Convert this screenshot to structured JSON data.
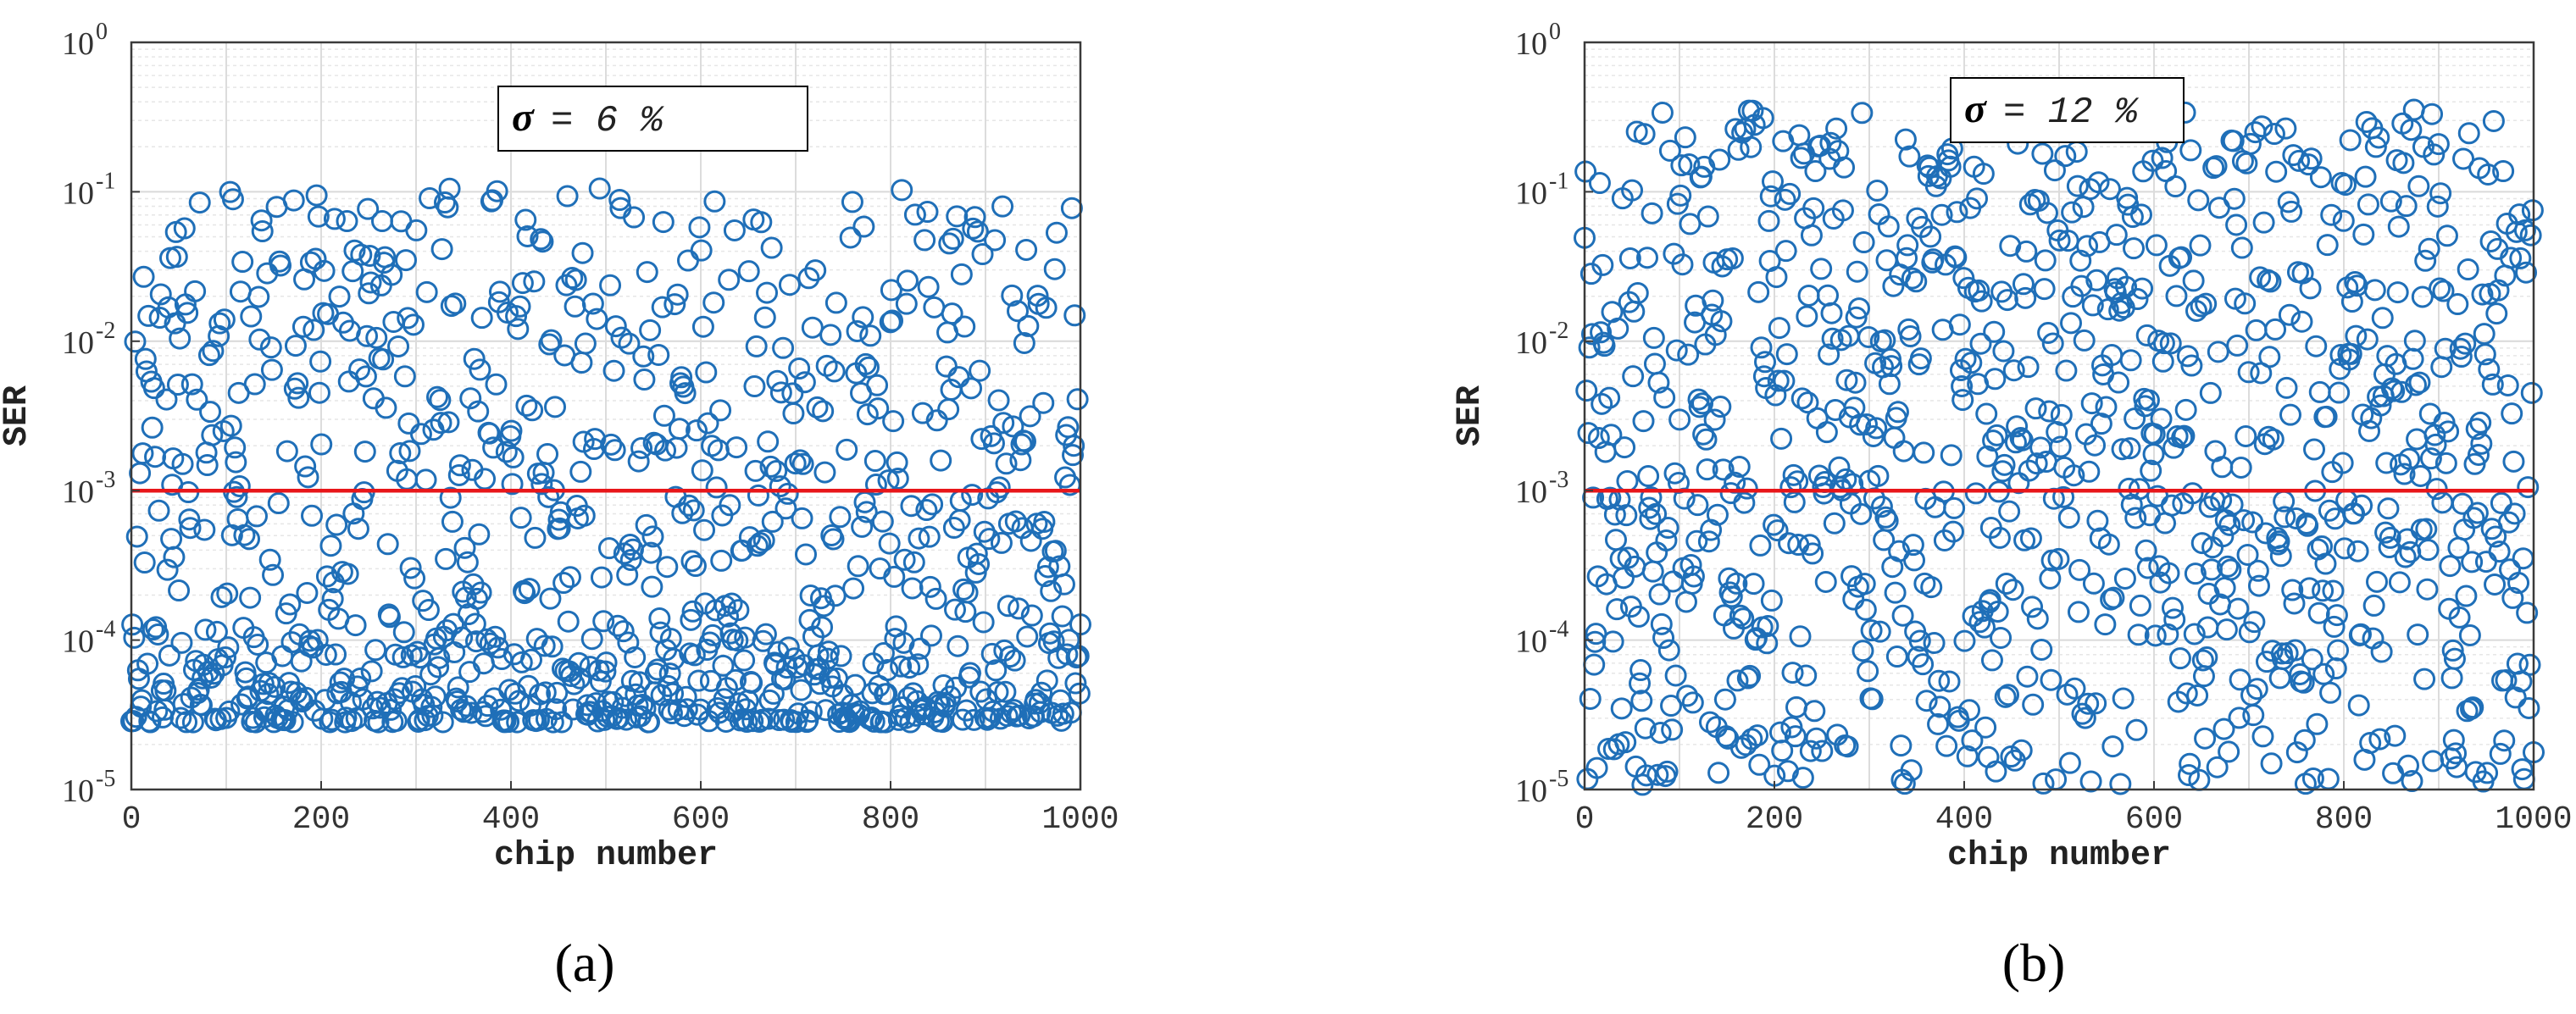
{
  "chart_data": [
    {
      "type": "scatter",
      "panel_label": "(a)",
      "annotation": {
        "symbol": "σ",
        "text": "= 6 %"
      },
      "xlabel": "chip number",
      "ylabel": "SER",
      "xlim": [
        0,
        1000
      ],
      "ylim_log10": [
        -5,
        0
      ],
      "y_scale": "log",
      "grid": true,
      "xticks": [
        "0",
        "200",
        "400",
        "600",
        "800",
        "1000"
      ],
      "yticks": [
        {
          "base": "10",
          "exp": "-5"
        },
        {
          "base": "10",
          "exp": "-4"
        },
        {
          "base": "10",
          "exp": "-3"
        },
        {
          "base": "10",
          "exp": "-2"
        },
        {
          "base": "10",
          "exp": "-1"
        },
        {
          "base": "10",
          "exp": "0"
        }
      ],
      "threshold": {
        "y": 0.001,
        "color": "#e8161a"
      },
      "marker_color": "#1f6fb8",
      "series": [
        {
          "points_sampled": "random_lognormal_proxy",
          "n": 1000,
          "log10_min": -4.55,
          "log10_max": -0.95,
          "seed": 6
        }
      ]
    },
    {
      "type": "scatter",
      "panel_label": "(b)",
      "annotation": {
        "symbol": "σ",
        "text": "= 12 %"
      },
      "xlabel": "chip number",
      "ylabel": "SER",
      "xlim": [
        0,
        1000
      ],
      "ylim_log10": [
        -5,
        0
      ],
      "y_scale": "log",
      "grid": true,
      "xticks": [
        "0",
        "200",
        "400",
        "600",
        "800",
        "1000"
      ],
      "yticks": [
        {
          "base": "10",
          "exp": "-5"
        },
        {
          "base": "10",
          "exp": "-4"
        },
        {
          "base": "10",
          "exp": "-3"
        },
        {
          "base": "10",
          "exp": "-2"
        },
        {
          "base": "10",
          "exp": "-1"
        },
        {
          "base": "10",
          "exp": "0"
        }
      ],
      "threshold": {
        "y": 0.001,
        "color": "#e8161a"
      },
      "marker_color": "#1f6fb8",
      "series": [
        {
          "points_sampled": "random_uniform_proxy",
          "n": 1000,
          "log10_min": -4.97,
          "log10_max": -0.45,
          "seed": 12
        }
      ]
    }
  ]
}
